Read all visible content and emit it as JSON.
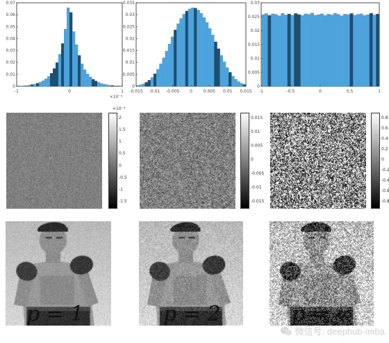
{
  "chart_data": [
    {
      "type": "bar",
      "title": "",
      "ylim": [
        0,
        0.07
      ],
      "xlim": [
        -1,
        1
      ],
      "x_ticks": [
        "-1",
        "0",
        "1"
      ],
      "x_exponent": "×10⁻⁴",
      "y_ticks": [
        "0",
        "0.01",
        "0.02",
        "0.03",
        "0.04",
        "0.05",
        "0.06",
        "0.07"
      ],
      "shape": "laplacian",
      "peak": 0.066,
      "series": [
        {
          "values": [
            0.0003,
            0.0004,
            0.0006,
            0.0008,
            0.0011,
            0.0015,
            0.002,
            0.0027,
            0.0036,
            0.0048,
            0.0064,
            0.0085,
            0.011,
            0.015,
            0.02,
            0.027,
            0.036,
            0.048,
            0.066,
            0.062,
            0.046,
            0.035,
            0.026,
            0.019,
            0.014,
            0.0105,
            0.008,
            0.006,
            0.0045,
            0.0034,
            0.0025,
            0.0019,
            0.0014,
            0.001,
            0.0008,
            0.0006,
            0.0004,
            0.0003
          ]
        }
      ]
    },
    {
      "type": "bar",
      "title": "",
      "ylim": [
        0,
        0.035
      ],
      "xlim": [
        -0.015,
        0.015
      ],
      "x_ticks": [
        "-0.015",
        "-0.01",
        "-0.005",
        "0",
        "0.005",
        "0.01",
        "0.015"
      ],
      "y_ticks": [
        "0",
        "0.005",
        "0.01",
        "0.015",
        "0.02",
        "0.025",
        "0.03",
        "0.035"
      ],
      "shape": "gaussian",
      "peak": 0.033,
      "series": [
        {
          "values": [
            0.0004,
            0.0007,
            0.0011,
            0.0017,
            0.0026,
            0.0038,
            0.0053,
            0.0072,
            0.0095,
            0.012,
            0.0148,
            0.0178,
            0.0208,
            0.0237,
            0.0263,
            0.0285,
            0.0303,
            0.0316,
            0.0325,
            0.033,
            0.0328,
            0.032,
            0.0307,
            0.0289,
            0.0268,
            0.0243,
            0.0216,
            0.0187,
            0.0158,
            0.013,
            0.0103,
            0.0079,
            0.0059,
            0.0043,
            0.003,
            0.002,
            0.0013,
            0.0008
          ]
        }
      ]
    },
    {
      "type": "bar",
      "title": "",
      "ylim": [
        0,
        0.03
      ],
      "xlim": [
        -1,
        1
      ],
      "x_ticks": [
        "-1",
        "-0.5",
        "0",
        "0.5",
        "1"
      ],
      "y_ticks": [
        "0",
        "0.005",
        "0.01",
        "0.015",
        "0.02",
        "0.025",
        "0.03"
      ],
      "shape": "uniform",
      "peak": 0.026,
      "series": [
        {
          "values": [
            0.0258,
            0.0262,
            0.0255,
            0.0261,
            0.0259,
            0.0254,
            0.0263,
            0.0257,
            0.026,
            0.0256,
            0.0262,
            0.0258,
            0.0255,
            0.0261,
            0.0259,
            0.0264,
            0.0256,
            0.0258,
            0.0261,
            0.0255,
            0.026,
            0.0257,
            0.0263,
            0.0259,
            0.0254,
            0.026,
            0.0258,
            0.0262,
            0.0256,
            0.0259,
            0.0261,
            0.0255,
            0.0258,
            0.0263,
            0.0257,
            0.026
          ]
        }
      ]
    }
  ],
  "colorbars": [
    {
      "ticks": [
        "2",
        "1.5",
        "1",
        "0.5",
        "0",
        "-0.5",
        "-1",
        "-1.5"
      ],
      "exponent": "×10⁻⁴"
    },
    {
      "ticks": [
        "0.015",
        "0.01",
        "0.005",
        "0",
        "-0.005",
        "-0.01",
        "-0.015"
      ],
      "exponent": ""
    },
    {
      "ticks": [
        "0.8",
        "0.6",
        "0.4",
        "0.2",
        "0",
        "-0.2",
        "-0.4",
        "-0.6",
        "-0.8"
      ],
      "exponent": ""
    }
  ],
  "captions": [
    "p = 1",
    "p = 2",
    "p = ∞"
  ],
  "watermark": {
    "text": "微信号: deephub-imba",
    "icon": "wechat-icon"
  },
  "colors": {
    "bar": "#4da3dc",
    "bar_dark": "#1d4f73"
  }
}
